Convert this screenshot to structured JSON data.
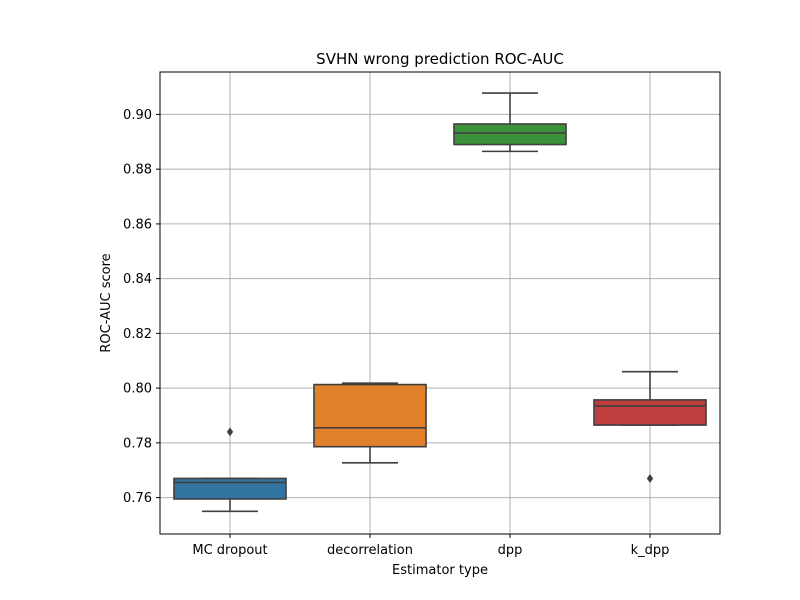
{
  "chart_data": {
    "type": "box",
    "title": "SVHN wrong prediction ROC-AUC",
    "xlabel": "Estimator type",
    "ylabel": "ROC-AUC score",
    "ylim": [
      0.7467,
      0.9155
    ],
    "yticks": [
      0.76,
      0.78,
      0.8,
      0.82,
      0.84,
      0.86,
      0.88,
      0.9
    ],
    "ytick_labels": [
      "0.76",
      "0.78",
      "0.80",
      "0.82",
      "0.84",
      "0.86",
      "0.88",
      "0.90"
    ],
    "grid": true,
    "categories": [
      "MC dropout",
      "decorrelation",
      "dpp",
      "k_dpp"
    ],
    "boxes": [
      {
        "category": "MC dropout",
        "whisker_low": 0.755,
        "q1": 0.7595,
        "median": 0.7655,
        "q3": 0.767,
        "whisker_high": 0.767,
        "outliers": [
          0.784
        ],
        "color": "#3274a1"
      },
      {
        "category": "decorrelation",
        "whisker_low": 0.7727,
        "q1": 0.7786,
        "median": 0.7855,
        "q3": 0.8013,
        "whisker_high": 0.8018,
        "outliers": [],
        "color": "#e1812c"
      },
      {
        "category": "dpp",
        "whisker_low": 0.8865,
        "q1": 0.889,
        "median": 0.8932,
        "q3": 0.8965,
        "whisker_high": 0.9078,
        "outliers": [],
        "color": "#3a923a"
      },
      {
        "category": "k_dpp",
        "whisker_low": 0.7865,
        "q1": 0.7865,
        "median": 0.7935,
        "q3": 0.7957,
        "whisker_high": 0.806,
        "outliers": [
          0.767
        ],
        "color": "#c03d3e"
      }
    ]
  }
}
